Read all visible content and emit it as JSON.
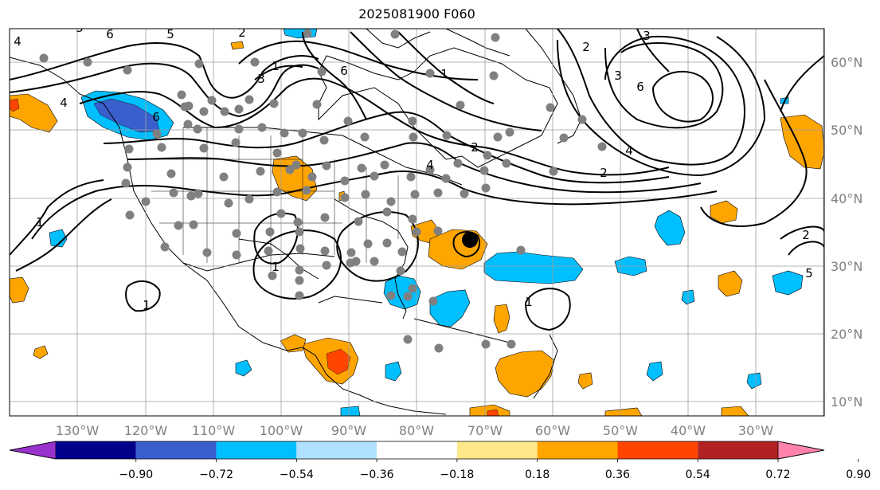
{
  "title": "2025081900 F060",
  "map": {
    "lon_labels": [
      "130°W",
      "120°W",
      "110°W",
      "100°W",
      "90°W",
      "80°W",
      "70°W",
      "60°W",
      "50°W",
      "40°W",
      "30°W"
    ],
    "lat_labels": [
      "60°N",
      "50°N",
      "40°N",
      "30°N",
      "20°N",
      "10°N"
    ],
    "contour_labels": [
      "4",
      "5",
      "6",
      "6",
      "5",
      "2",
      "1",
      "3",
      "6",
      "1",
      "2",
      "3",
      "3",
      "6",
      "4",
      "2",
      "2",
      "4",
      "1",
      "1",
      "1",
      "1",
      "5",
      "2",
      "4"
    ]
  },
  "colorbar": {
    "ticks": [
      "−0.90",
      "−0.72",
      "−0.54",
      "−0.36",
      "−0.18",
      "0.18",
      "0.36",
      "0.54",
      "0.72",
      "0.90"
    ],
    "colors": [
      "#9932cc",
      "#00008b",
      "#3a5fcd",
      "#00bfff",
      "#b0e0ff",
      "#ffffff",
      "#ffe78a",
      "#ffa500",
      "#ff4500",
      "#b22222",
      "#ff82ab"
    ]
  },
  "fill_colors": {
    "orange": "#ffa500",
    "cyan": "#00bfff",
    "blue": "#3a5fcd",
    "red": "#ff4500",
    "dot": "#808080"
  }
}
